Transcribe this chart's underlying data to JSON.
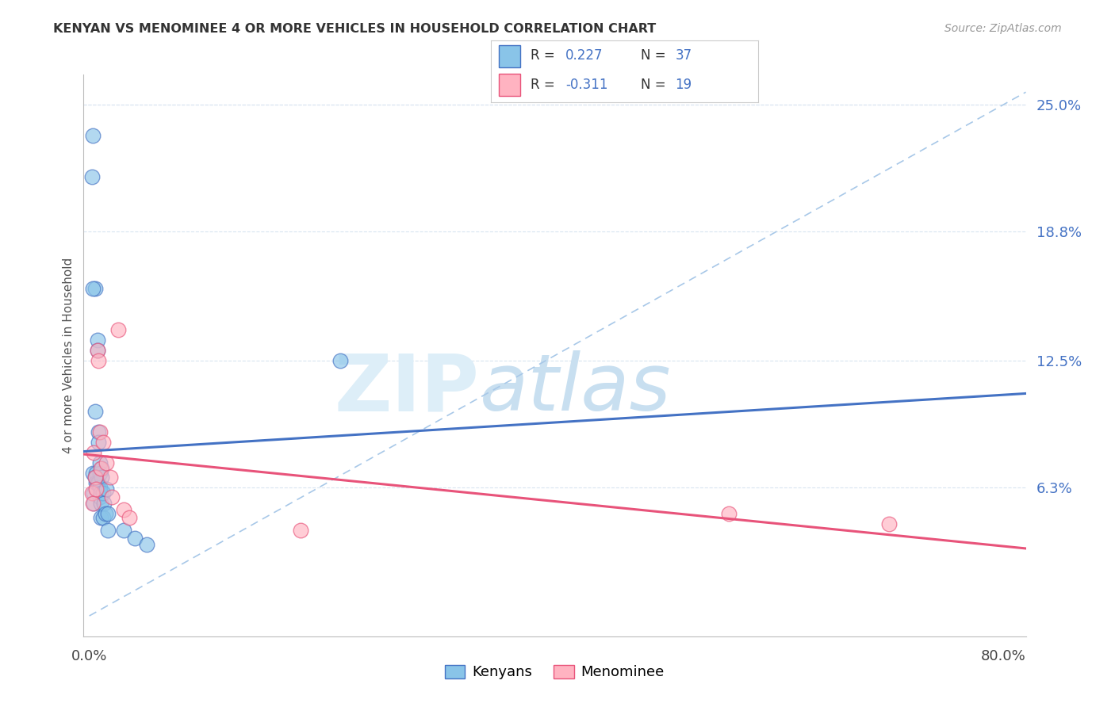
{
  "title": "KENYAN VS MENOMINEE 4 OR MORE VEHICLES IN HOUSEHOLD CORRELATION CHART",
  "source": "Source: ZipAtlas.com",
  "ylabel": "4 or more Vehicles in Household",
  "xlim": [
    -0.005,
    0.82
  ],
  "ylim": [
    -0.01,
    0.265
  ],
  "ytick_right_labels": [
    "25.0%",
    "18.8%",
    "12.5%",
    "6.3%"
  ],
  "ytick_right_values": [
    0.25,
    0.188,
    0.125,
    0.063
  ],
  "kenyans_x": [
    0.002,
    0.003,
    0.003,
    0.004,
    0.004,
    0.005,
    0.005,
    0.006,
    0.006,
    0.007,
    0.007,
    0.007,
    0.008,
    0.008,
    0.008,
    0.009,
    0.009,
    0.009,
    0.009,
    0.01,
    0.01,
    0.01,
    0.011,
    0.011,
    0.012,
    0.012,
    0.013,
    0.014,
    0.015,
    0.016,
    0.016,
    0.03,
    0.04,
    0.05,
    0.22,
    0.003,
    0.005
  ],
  "kenyans_y": [
    0.215,
    0.235,
    0.07,
    0.06,
    0.055,
    0.16,
    0.1,
    0.07,
    0.065,
    0.135,
    0.13,
    0.065,
    0.09,
    0.085,
    0.065,
    0.075,
    0.07,
    0.063,
    0.058,
    0.06,
    0.055,
    0.048,
    0.072,
    0.068,
    0.06,
    0.048,
    0.055,
    0.05,
    0.062,
    0.05,
    0.042,
    0.042,
    0.038,
    0.035,
    0.125,
    0.16,
    0.068
  ],
  "menominee_x": [
    0.002,
    0.003,
    0.004,
    0.005,
    0.006,
    0.007,
    0.008,
    0.009,
    0.01,
    0.012,
    0.015,
    0.018,
    0.02,
    0.025,
    0.03,
    0.035,
    0.185,
    0.56,
    0.7
  ],
  "menominee_y": [
    0.06,
    0.055,
    0.08,
    0.068,
    0.062,
    0.13,
    0.125,
    0.09,
    0.072,
    0.085,
    0.075,
    0.068,
    0.058,
    0.14,
    0.052,
    0.048,
    0.042,
    0.05,
    0.045
  ],
  "kenyan_color": "#89c4e8",
  "menominee_color": "#ffb3c1",
  "kenyan_line_color": "#4472c4",
  "menominee_line_color": "#e8537a",
  "trendline_dash_color": "#a8c8e8",
  "background_color": "#ffffff",
  "grid_color": "#d8e4f0"
}
